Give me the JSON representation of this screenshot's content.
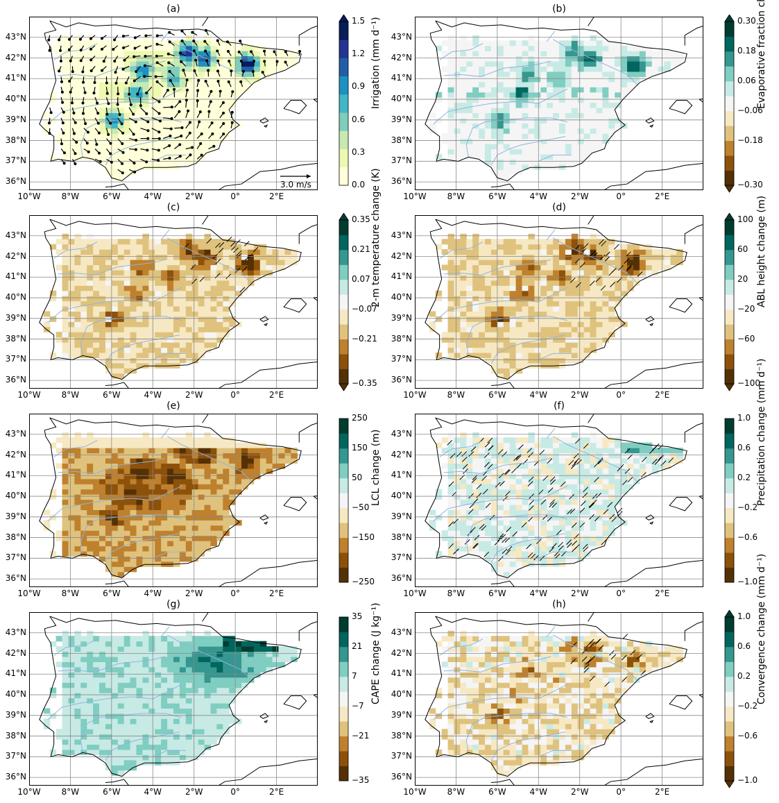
{
  "latitudes": [
    "43°N",
    "42°N",
    "41°N",
    "40°N",
    "39°N",
    "38°N",
    "37°N",
    "36°N"
  ],
  "longitudes": [
    "10°W",
    "8°W",
    "6°W",
    "4°W",
    "2°W",
    "0°",
    "2°E"
  ],
  "colors": {
    "brbg": [
      "#543005",
      "#8c510a",
      "#bf812d",
      "#dfc27d",
      "#f6e8c3",
      "#f5f5f5",
      "#c7eae5",
      "#80cdc1",
      "#35978f",
      "#01665e",
      "#003c30"
    ],
    "ylgnbu": [
      "#ffffd9",
      "#edf8b1",
      "#c7e9b4",
      "#7fcdbb",
      "#41b6c4",
      "#1d91c0",
      "#225ea8",
      "#253494",
      "#081d58"
    ],
    "river": "#8fb4e0",
    "coast": "#000000",
    "grid": "#888888"
  },
  "panels": [
    {
      "title": "(a)",
      "colormap": "ylgnbu",
      "cbar_label": "Irrigation (mm d⁻¹)",
      "ticks": [
        "1.5",
        "1.2",
        "0.9",
        "0.6",
        "0.3",
        "0.0"
      ],
      "extend": "max",
      "has_vectors": true,
      "scale_label": "3.0 m/s"
    },
    {
      "title": "(b)",
      "colormap": "brbg",
      "cbar_label": "Evaporative fraction change",
      "ticks": [
        "0.30",
        "0.18",
        "0.06",
        "−0.06",
        "−0.18",
        "−0.30"
      ],
      "extend": "both"
    },
    {
      "title": "(c)",
      "colormap": "brbg",
      "cbar_label": "2-m temperature change (K)",
      "ticks": [
        "0.35",
        "0.21",
        "0.07",
        "−0.07",
        "−0.21",
        "−0.35"
      ],
      "extend": "both"
    },
    {
      "title": "(d)",
      "colormap": "brbg",
      "cbar_label": "ABL height change (m)",
      "ticks": [
        "100",
        "60",
        "20",
        "−20",
        "−60",
        "−100"
      ],
      "extend": "both"
    },
    {
      "title": "(e)",
      "colormap": "brbg",
      "cbar_label": "LCL change (m)",
      "ticks": [
        "250",
        "150",
        "50",
        "−50",
        "−150",
        "−250"
      ],
      "extend": "none"
    },
    {
      "title": "(f)",
      "colormap": "brbg",
      "cbar_label": "Precipitation change (mm d⁻¹)",
      "ticks": [
        "1.0",
        "0.6",
        "0.2",
        "−0.2",
        "−0.6",
        "−1.0"
      ],
      "extend": "none"
    },
    {
      "title": "(g)",
      "colormap": "brbg",
      "cbar_label": "CAPE change (J kg⁻¹)",
      "ticks": [
        "35",
        "21",
        "7",
        "−7",
        "−21",
        "−35"
      ],
      "extend": "none"
    },
    {
      "title": "(h)",
      "colormap": "brbg",
      "cbar_label": "Convergence change (mm d⁻¹)",
      "ticks": [
        "1.0",
        "0.6",
        "0.2",
        "−0.2",
        "−0.6",
        "−1.0"
      ],
      "extend": "both"
    }
  ]
}
